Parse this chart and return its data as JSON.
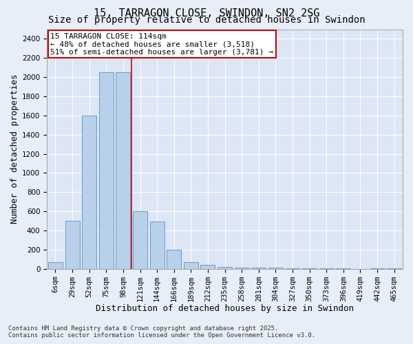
{
  "title_line1": "15, TARRAGON CLOSE, SWINDON, SN2 2SG",
  "title_line2": "Size of property relative to detached houses in Swindon",
  "xlabel": "Distribution of detached houses by size in Swindon",
  "ylabel": "Number of detached properties",
  "categories": [
    "6sqm",
    "29sqm",
    "52sqm",
    "75sqm",
    "98sqm",
    "121sqm",
    "144sqm",
    "166sqm",
    "189sqm",
    "212sqm",
    "235sqm",
    "258sqm",
    "281sqm",
    "304sqm",
    "327sqm",
    "350sqm",
    "373sqm",
    "396sqm",
    "419sqm",
    "442sqm",
    "465sqm"
  ],
  "values": [
    70,
    500,
    1600,
    2050,
    2050,
    600,
    490,
    200,
    70,
    40,
    20,
    15,
    10,
    10,
    5,
    5,
    5,
    5,
    0,
    5,
    5
  ],
  "bar_color": "#b8d0ea",
  "bar_edge_color": "#6a9cc9",
  "vline_color": "#cc0000",
  "vline_x": 4.5,
  "annotation_text": "15 TARRAGON CLOSE: 114sqm\n← 48% of detached houses are smaller (3,518)\n51% of semi-detached houses are larger (3,781) →",
  "annotation_box_facecolor": "#ffffff",
  "annotation_box_edgecolor": "#cc0000",
  "ylim": [
    0,
    2500
  ],
  "yticks": [
    0,
    200,
    400,
    600,
    800,
    1000,
    1200,
    1400,
    1600,
    1800,
    2000,
    2200,
    2400
  ],
  "background_color": "#e8eef7",
  "plot_background": "#dce6f5",
  "grid_color": "#ffffff",
  "footer_line1": "Contains HM Land Registry data © Crown copyright and database right 2025.",
  "footer_line2": "Contains public sector information licensed under the Open Government Licence v3.0.",
  "title_fontsize": 11,
  "subtitle_fontsize": 10,
  "tick_fontsize": 7.5,
  "label_fontsize": 9,
  "annotation_fontsize": 8,
  "footer_fontsize": 6.5
}
